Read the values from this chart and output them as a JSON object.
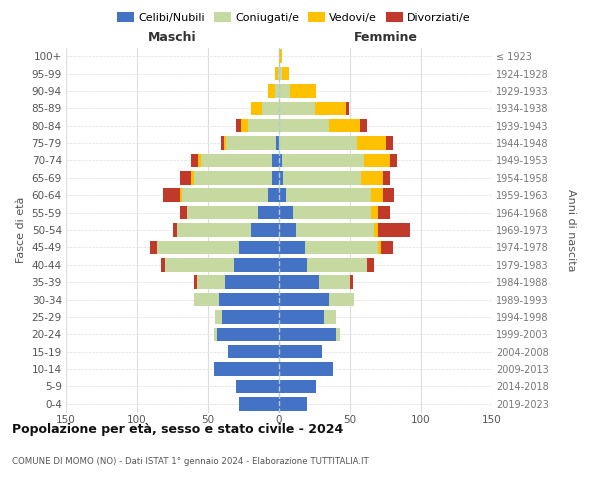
{
  "age_groups": [
    "0-4",
    "5-9",
    "10-14",
    "15-19",
    "20-24",
    "25-29",
    "30-34",
    "35-39",
    "40-44",
    "45-49",
    "50-54",
    "55-59",
    "60-64",
    "65-69",
    "70-74",
    "75-79",
    "80-84",
    "85-89",
    "90-94",
    "95-99",
    "100+"
  ],
  "birth_years": [
    "2019-2023",
    "2014-2018",
    "2009-2013",
    "2004-2008",
    "1999-2003",
    "1994-1998",
    "1989-1993",
    "1984-1988",
    "1979-1983",
    "1974-1978",
    "1969-1973",
    "1964-1968",
    "1959-1963",
    "1954-1958",
    "1949-1953",
    "1944-1948",
    "1939-1943",
    "1934-1938",
    "1929-1933",
    "1924-1928",
    "≤ 1923"
  ],
  "colors": {
    "celibi": "#4472c4",
    "coniugati": "#c5d9a0",
    "vedovi": "#ffc000",
    "divorziati": "#c0392b"
  },
  "maschi": {
    "celibi": [
      28,
      30,
      46,
      36,
      44,
      40,
      42,
      38,
      32,
      28,
      20,
      15,
      8,
      5,
      5,
      2,
      0,
      0,
      0,
      0,
      0
    ],
    "coniugati": [
      0,
      0,
      0,
      0,
      2,
      5,
      18,
      20,
      48,
      58,
      52,
      50,
      60,
      55,
      50,
      35,
      22,
      12,
      3,
      1,
      0
    ],
    "vedovi": [
      0,
      0,
      0,
      0,
      0,
      0,
      0,
      0,
      0,
      0,
      0,
      0,
      2,
      2,
      2,
      2,
      5,
      8,
      5,
      2,
      0
    ],
    "divorziati": [
      0,
      0,
      0,
      0,
      0,
      0,
      0,
      2,
      3,
      5,
      3,
      5,
      12,
      8,
      5,
      2,
      3,
      0,
      0,
      0,
      0
    ]
  },
  "femmine": {
    "celibi": [
      20,
      26,
      38,
      30,
      40,
      32,
      35,
      28,
      20,
      18,
      12,
      10,
      5,
      3,
      2,
      0,
      0,
      0,
      0,
      0,
      0
    ],
    "coniugati": [
      0,
      0,
      0,
      0,
      3,
      8,
      18,
      22,
      42,
      52,
      55,
      55,
      60,
      55,
      58,
      55,
      35,
      25,
      8,
      2,
      0
    ],
    "vedovi": [
      0,
      0,
      0,
      0,
      0,
      0,
      0,
      0,
      0,
      2,
      3,
      5,
      8,
      15,
      18,
      20,
      22,
      22,
      18,
      5,
      2
    ],
    "divorziati": [
      0,
      0,
      0,
      0,
      0,
      0,
      0,
      2,
      5,
      8,
      22,
      8,
      8,
      5,
      5,
      5,
      5,
      2,
      0,
      0,
      0
    ]
  },
  "title": "Popolazione per età, sesso e stato civile - 2024",
  "subtitle": "COMUNE DI MOMO (NO) - Dati ISTAT 1° gennaio 2024 - Elaborazione TUTTITALIA.IT",
  "ylabel_left": "Fasce di età",
  "ylabel_right": "Anni di nascita",
  "xlabel_left": "Maschi",
  "xlabel_right": "Femmine",
  "xlim": 150,
  "background_color": "#ffffff",
  "grid_color": "#dddddd"
}
